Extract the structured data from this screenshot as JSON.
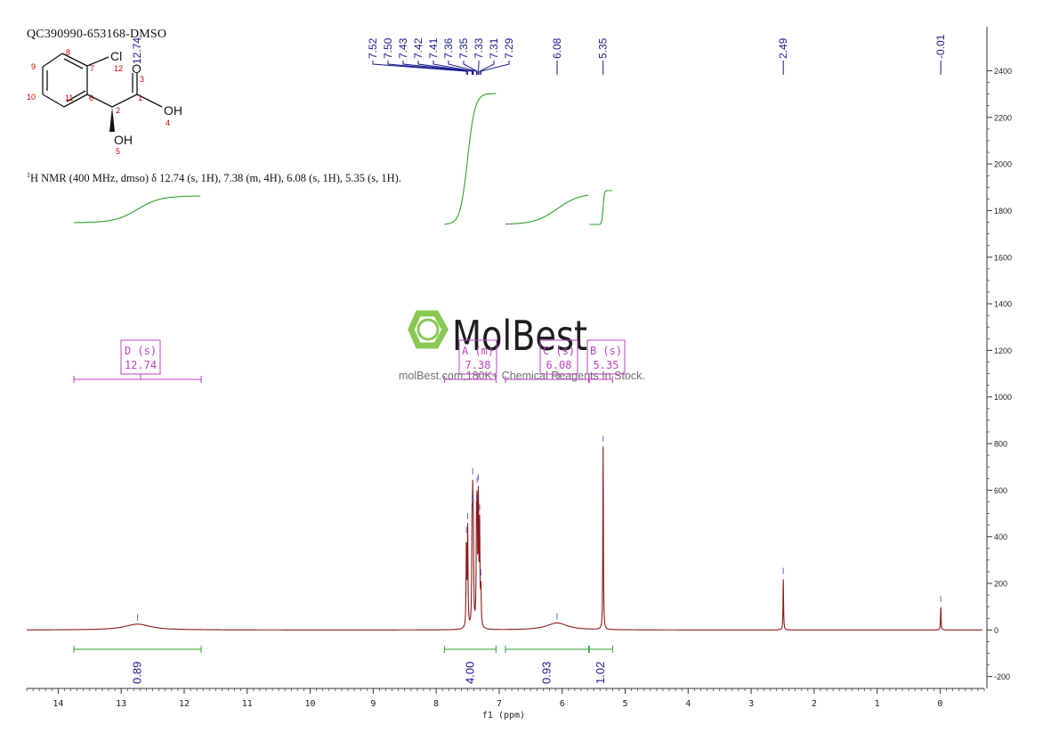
{
  "sample_id": "QC390990-653168-DMSO",
  "nmr_summary": {
    "nucleus_sup": "1",
    "text": "H NMR (400 MHz, dmso) δ 12.74 (s, 1H), 7.38 (m, 4H), 6.08 (s, 1H), 5.35 (s, 1H)."
  },
  "structure": {
    "atoms": [
      {
        "label": "Cl",
        "number": "12"
      },
      {
        "label": "O",
        "number": "3"
      },
      {
        "label": "OH",
        "number": "4"
      },
      {
        "label": "OH",
        "number": "5"
      }
    ],
    "ring_numbers": [
      "7",
      "8",
      "9",
      "10",
      "11",
      "6",
      "2",
      "1"
    ]
  },
  "watermark": {
    "brand": "MolBest",
    "tagline": "molBest.com,180K+ Chemical Reagents In Stock."
  },
  "colors": {
    "spectrum": "#8b1a1a",
    "peak_label": "#1a1a8c",
    "integral": "#2ca02c",
    "multiplet": "#c040c0",
    "axis": "#333333",
    "watermark_green": "#7cc242",
    "atom_red": "#cc0000"
  },
  "chart_data": {
    "type": "line",
    "xlabel": "f1 (ppm)",
    "ylabel": "",
    "xlim": [
      14.5,
      -0.7
    ],
    "ylim": [
      -270,
      2570
    ],
    "x_ticks": [
      14,
      13,
      12,
      11,
      10,
      9,
      8,
      7,
      6,
      5,
      4,
      3,
      2,
      1,
      0
    ],
    "y_ticks": [
      -200,
      0,
      200,
      400,
      600,
      800,
      1000,
      1200,
      1400,
      1600,
      1800,
      2000,
      2200,
      2400
    ],
    "peaks": [
      {
        "ppm": 12.74,
        "height": 25,
        "width": 0.25,
        "label_ppm": "12.74"
      },
      {
        "ppm": 7.52,
        "height": 360,
        "width": 0.006,
        "label_ppm": "7.52"
      },
      {
        "ppm": 7.5,
        "height": 420,
        "width": 0.006,
        "label_ppm": "7.50"
      },
      {
        "ppm": 7.43,
        "height": 380,
        "width": 0.006,
        "label_ppm": "7.43"
      },
      {
        "ppm": 7.42,
        "height": 440,
        "width": 0.006,
        "label_ppm": "7.42"
      },
      {
        "ppm": 7.41,
        "height": 360,
        "width": 0.006,
        "label_ppm": "7.41"
      },
      {
        "ppm": 7.36,
        "height": 380,
        "width": 0.006,
        "label_ppm": "7.36"
      },
      {
        "ppm": 7.35,
        "height": 450,
        "width": 0.006,
        "label_ppm": "7.35"
      },
      {
        "ppm": 7.33,
        "height": 530,
        "width": 0.006,
        "label_ppm": "7.33"
      },
      {
        "ppm": 7.31,
        "height": 420,
        "width": 0.006,
        "label_ppm": "7.31"
      },
      {
        "ppm": 7.29,
        "height": 160,
        "width": 0.006,
        "label_ppm": "7.29"
      },
      {
        "ppm": 6.08,
        "height": 30,
        "width": 0.2,
        "label_ppm": "6.08"
      },
      {
        "ppm": 5.35,
        "height": 790,
        "width": 0.005,
        "label_ppm": "5.35"
      },
      {
        "ppm": 2.49,
        "height": 225,
        "width": 0.005,
        "label_ppm": "2.49"
      },
      {
        "ppm": -0.01,
        "height": 105,
        "width": 0.005,
        "label_ppm": "-0.01"
      }
    ],
    "integrals": [
      {
        "from": 13.75,
        "to": 11.73,
        "value": "0.89"
      },
      {
        "from": 7.87,
        "to": 7.05,
        "value": "4.00"
      },
      {
        "from": 6.9,
        "to": 5.58,
        "value": "0.93"
      },
      {
        "from": 5.57,
        "to": 5.2,
        "value": "1.02"
      }
    ],
    "multiplets": [
      {
        "letter": "D (s)",
        "shift": "12.74",
        "from": 13.75,
        "to": 11.73
      },
      {
        "letter": "A (m)",
        "shift": "7.38",
        "from": 7.87,
        "to": 7.05
      },
      {
        "letter": "C (s)",
        "shift": "6.08",
        "from": 6.9,
        "to": 5.58
      },
      {
        "letter": "B (s)",
        "shift": "5.35",
        "from": 5.57,
        "to": 5.2
      }
    ]
  }
}
